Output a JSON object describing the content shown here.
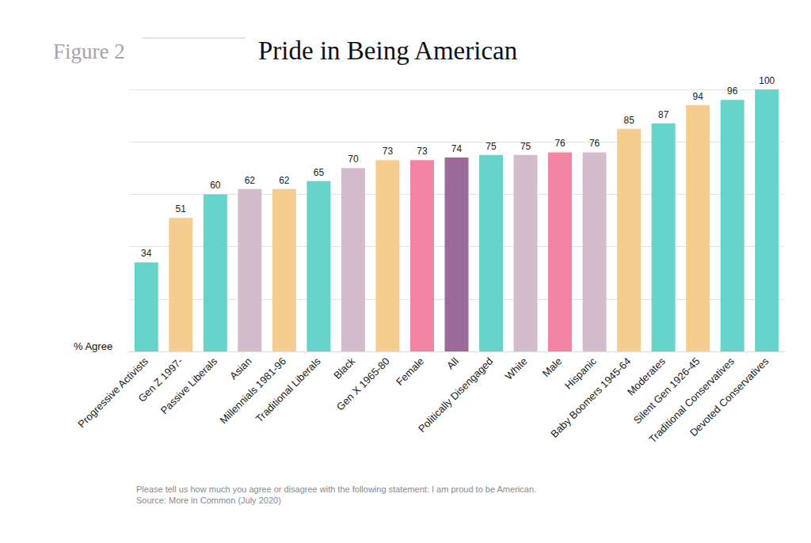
{
  "chart_data": {
    "type": "bar",
    "figure_label": "Figure 2",
    "title": "Pride in Being American",
    "y_label": "% Agree",
    "categories": [
      "Progressive Activists",
      "Gen Z 1997-",
      "Passive Liberals",
      "Asian",
      "Millennials 1981-96",
      "Traditional Liberals",
      "Black",
      "Gen X 1965-80",
      "Female",
      "All",
      "Politically Disengaged",
      "White",
      "Male",
      "Hispanic",
      "Baby Boomers 1945-64",
      "Moderates",
      "Silent Gen 1926-45",
      "Traditional Conservatives",
      "Devoted Conservatives"
    ],
    "values": [
      34,
      51,
      60,
      62,
      62,
      65,
      70,
      73,
      73,
      74,
      75,
      75,
      76,
      76,
      85,
      87,
      94,
      96,
      100
    ],
    "colors": [
      "#66d4cb",
      "#f5cd8f",
      "#66d4cb",
      "#d3bccb",
      "#f5cd8f",
      "#66d4cb",
      "#d3bccb",
      "#f5cd8f",
      "#f285a3",
      "#9a6b99",
      "#66d4cb",
      "#d3bccb",
      "#f285a3",
      "#d3bccb",
      "#f5cd8f",
      "#66d4cb",
      "#f5cd8f",
      "#66d4cb",
      "#66d4cb"
    ],
    "ylim": [
      0,
      100
    ],
    "yticks": [
      0,
      20,
      40,
      60,
      80,
      100
    ],
    "grid": true,
    "data_labels": true,
    "tick_labels": "x",
    "note": "Please tell us how much you agree or disagree with the following statement: I am proud to be American.",
    "source": "Source: More in Common (July 2020)"
  }
}
